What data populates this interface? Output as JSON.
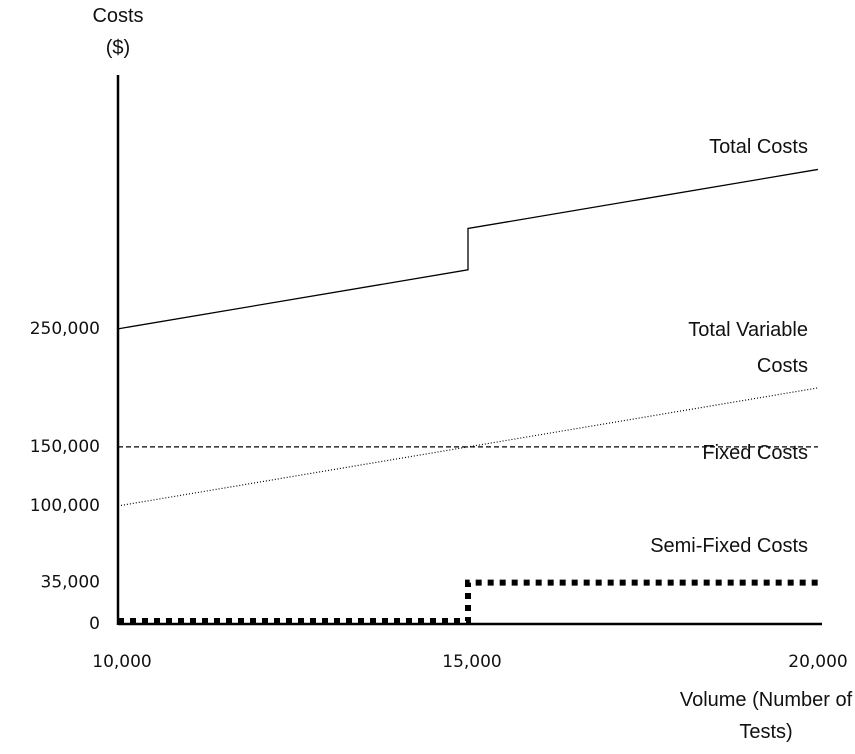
{
  "chart_data": {
    "type": "line",
    "xlabel": "Volume (Number of Tests)",
    "ylabel": "Costs ($)",
    "xlim": [
      10000,
      20000
    ],
    "xticks": [
      {
        "value": 10000,
        "label": "10,000"
      },
      {
        "value": 15000,
        "label": "15,000"
      },
      {
        "value": 20000,
        "label": "20,000"
      }
    ],
    "ylim": [
      0,
      465000
    ],
    "yticks": [
      0,
      {
        "value": 35000,
        "label": "35,000"
      },
      {
        "value": 100000,
        "label": "100,000"
      },
      {
        "value": 150000,
        "label": "150,000"
      },
      {
        "value": 250000,
        "label": "250,000"
      }
    ],
    "series": [
      {
        "name": "Total Costs",
        "color": "#000000",
        "style": "solid",
        "x": [
          10000,
          15000,
          15000,
          20000
        ],
        "values": [
          250000,
          300000,
          335000,
          385000
        ]
      },
      {
        "name": "Total Variable Costs",
        "color": "#000000",
        "style": "dotted",
        "x": [
          10000,
          20000
        ],
        "values": [
          100000,
          200000
        ]
      },
      {
        "name": "Fixed Costs",
        "color": "#000000",
        "style": "dashed",
        "x": [
          10000,
          20000
        ],
        "values": [
          150000,
          150000
        ]
      },
      {
        "name": "Semi-Fixed Costs",
        "color": "#000000",
        "style": "heavy-dotted",
        "x": [
          10000,
          15000,
          15000,
          20000
        ],
        "values": [
          0,
          0,
          35000,
          35000
        ]
      }
    ]
  }
}
